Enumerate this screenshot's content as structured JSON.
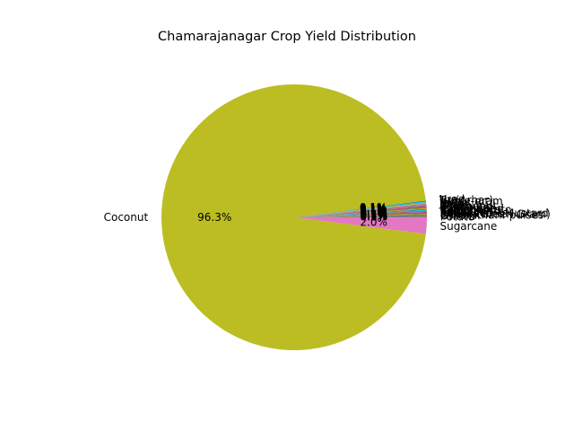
{
  "chart_data": {
    "type": "pie",
    "title": "Chamarajanagar Crop Yield Distribution",
    "slices": [
      {
        "label": "Coconut",
        "value": 96.3,
        "pct": "96.3%",
        "color": "#bcbd22"
      },
      {
        "label": "Sugarcane",
        "value": 2.0,
        "pct": "2.0%",
        "color": "#e377c2"
      },
      {
        "label": "Potato",
        "value": 0.1,
        "pct": "0.1%",
        "color": "#7f7f7f"
      },
      {
        "label": "Onion",
        "value": 0.1,
        "pct": "0.1%",
        "color": "#8c564b"
      },
      {
        "label": "Other Kharif pulses",
        "value": 0.1,
        "pct": "0.1%",
        "color": "#1f77b4"
      },
      {
        "label": "Moong(Green Gram)",
        "value": 0.1,
        "pct": "0.1%",
        "color": "#ff7f0e"
      },
      {
        "label": "Rapeseed &Mustard",
        "value": 0.1,
        "pct": "0.1%",
        "color": "#2ca02c"
      },
      {
        "label": "Safflower",
        "value": 0.1,
        "pct": "0.1%",
        "color": "#d62728"
      },
      {
        "label": "Soyabean",
        "value": 0.1,
        "pct": "0.1%",
        "color": "#9467bd"
      },
      {
        "label": "Cotton(lint)",
        "value": 0.1,
        "pct": "0.1%",
        "color": "#8c564b"
      },
      {
        "label": "Sweet potato",
        "value": 0.1,
        "pct": "0.1%",
        "color": "#17becf"
      },
      {
        "label": "Castor seed",
        "value": 0.1,
        "pct": "0.1%",
        "color": "#1f77b4"
      },
      {
        "label": "Sunflower",
        "value": 0.1,
        "pct": "0.1%",
        "color": "#ff7f0e"
      },
      {
        "label": "Sesamum",
        "value": 0.1,
        "pct": "0.1%",
        "color": "#2ca02c"
      },
      {
        "label": "Groundnut",
        "value": 0.1,
        "pct": "0.1%",
        "color": "#d62728"
      },
      {
        "label": "Maize",
        "value": 0.1,
        "pct": "0.1%",
        "color": "#9467bd"
      },
      {
        "label": "Ragi",
        "value": 0.1,
        "pct": "0.1%",
        "color": "#8c564b"
      },
      {
        "label": "Jowar",
        "value": 0.1,
        "pct": "0.1%",
        "color": "#e377c2"
      },
      {
        "label": "Rice",
        "value": 0.1,
        "pct": "0.1%",
        "color": "#7f7f7f"
      },
      {
        "label": "Horse-gram",
        "value": 0.1,
        "pct": "0.1%",
        "color": "#bcbd22"
      },
      {
        "label": "Tur(Arhar)",
        "value": 0.1,
        "pct": "0.1%",
        "color": "#17becf"
      },
      {
        "label": "Urad",
        "value": 0.1,
        "pct": "0.1%",
        "color": "#1f77b4"
      }
    ]
  }
}
